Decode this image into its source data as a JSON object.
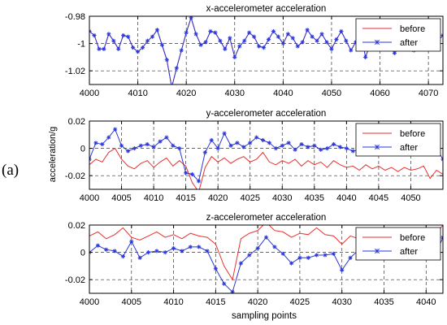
{
  "figure": {
    "panel_label": "(a)",
    "ylabel": "acceleration/g",
    "xlabel": "sampling points",
    "colors": {
      "before": "#e8312f",
      "after": "#2a37d8",
      "grid": "#000000"
    }
  },
  "chart_data": [
    {
      "type": "line",
      "title": "x-accelerometer acceleration",
      "xlabel": "",
      "ylabel": "",
      "xlim": [
        4000,
        4073
      ],
      "ylim": [
        -1.03,
        -0.98
      ],
      "xticks": [
        4000,
        4010,
        4020,
        4030,
        4040,
        4050,
        4060,
        4070
      ],
      "yticks": [
        -0.98,
        -1,
        -1.02
      ],
      "ytick_labels": [
        "-0.98",
        "-1",
        "-1.02"
      ],
      "grid": true,
      "legend": "top-right",
      "series": [
        {
          "name": "before",
          "x": [
            4000,
            4001,
            4002,
            4003,
            4004,
            4005,
            4006,
            4007,
            4008,
            4009,
            4010,
            4011,
            4012,
            4013,
            4014,
            4015,
            4016,
            4017,
            4018,
            4019,
            4020,
            4021,
            4022,
            4023,
            4024,
            4025,
            4026,
            4027,
            4028,
            4029,
            4030,
            4031,
            4032,
            4033,
            4034,
            4035,
            4036,
            4037,
            4038,
            4039,
            4040,
            4041,
            4042,
            4043,
            4044,
            4045,
            4046,
            4047,
            4048,
            4049,
            4050,
            4051,
            4052,
            4053,
            4054,
            4055,
            4056,
            4057,
            4058,
            4059,
            4060,
            4061,
            4062,
            4063,
            4064,
            4065,
            4066,
            4067,
            4068,
            4069,
            4070,
            4071,
            4072,
            4073
          ],
          "values": [
            -0.991,
            -0.994,
            -1.004,
            -1.004,
            -0.993,
            -0.998,
            -1.004,
            -0.994,
            -0.995,
            -1.003,
            -1.006,
            -1.003,
            -0.998,
            -0.995,
            -0.99,
            -1.001,
            -1.012,
            -1.032,
            -1.018,
            -1.005,
            -0.992,
            -0.981,
            -0.993,
            -1.001,
            -0.999,
            -0.991,
            -0.992,
            -0.998,
            -1.004,
            -0.996,
            -1.01,
            -1.002,
            -0.998,
            -0.992,
            -0.995,
            -1.002,
            -1.003,
            -0.997,
            -0.991,
            -0.995,
            -1.0,
            -0.993,
            -0.996,
            -1.002,
            -0.999,
            -0.99,
            -0.995,
            -0.998,
            -0.993,
            -0.999,
            -1.004,
            -0.997,
            -0.991,
            -0.998,
            -1.005,
            -0.999,
            -0.99,
            -1.01,
            -1.0,
            -0.994,
            -0.993,
            -1.002,
            -0.994,
            -1.007,
            -1.003,
            -0.995,
            -0.997,
            -1.005,
            -1.002,
            -0.996,
            -1.004,
            -1.003,
            -0.998,
            -0.994
          ]
        },
        {
          "name": "after",
          "x": [
            4000,
            4001,
            4002,
            4003,
            4004,
            4005,
            4006,
            4007,
            4008,
            4009,
            4010,
            4011,
            4012,
            4013,
            4014,
            4015,
            4016,
            4017,
            4018,
            4019,
            4020,
            4021,
            4022,
            4023,
            4024,
            4025,
            4026,
            4027,
            4028,
            4029,
            4030,
            4031,
            4032,
            4033,
            4034,
            4035,
            4036,
            4037,
            4038,
            4039,
            4040,
            4041,
            4042,
            4043,
            4044,
            4045,
            4046,
            4047,
            4048,
            4049,
            4050,
            4051,
            4052,
            4053,
            4054,
            4055,
            4056,
            4057,
            4058,
            4059,
            4060,
            4061,
            4062,
            4063,
            4064,
            4065,
            4066,
            4067,
            4068,
            4069,
            4070,
            4071,
            4072,
            4073
          ],
          "values": [
            -0.991,
            -0.994,
            -1.004,
            -1.004,
            -0.993,
            -0.998,
            -1.004,
            -0.994,
            -0.995,
            -1.003,
            -1.006,
            -1.003,
            -0.998,
            -0.995,
            -0.99,
            -1.001,
            -1.012,
            -1.032,
            -1.018,
            -1.005,
            -0.992,
            -0.981,
            -0.993,
            -1.001,
            -0.999,
            -0.991,
            -0.992,
            -0.998,
            -1.004,
            -0.996,
            -1.01,
            -1.002,
            -0.998,
            -0.992,
            -0.995,
            -1.002,
            -1.003,
            -0.997,
            -0.991,
            -0.995,
            -1.0,
            -0.993,
            -0.996,
            -1.002,
            -0.999,
            -0.99,
            -0.995,
            -0.998,
            -0.993,
            -0.999,
            -1.004,
            -0.997,
            -0.991,
            -0.998,
            -1.005,
            -0.999,
            -0.99,
            -1.01,
            -1.0,
            -0.994,
            -0.993,
            -1.002,
            -0.994,
            -1.007,
            -1.003,
            -0.995,
            -0.997,
            -1.005,
            -1.002,
            -0.996,
            -1.004,
            -1.003,
            -0.998,
            -0.994
          ]
        }
      ]
    },
    {
      "type": "line",
      "title": "y-accelerometer acceleration",
      "xlabel": "",
      "ylabel": "acceleration/g",
      "xlim": [
        4000,
        4055
      ],
      "ylim": [
        -0.03,
        0.02
      ],
      "xticks": [
        4000,
        4005,
        4010,
        4015,
        4020,
        4025,
        4030,
        4035,
        4040,
        4045,
        4050
      ],
      "yticks": [
        0.02,
        0,
        -0.02
      ],
      "ytick_labels": [
        "0.02",
        "0",
        "-0.02"
      ],
      "grid": true,
      "legend": "top-right",
      "series": [
        {
          "name": "before",
          "x": [
            4000,
            4001,
            4002,
            4003,
            4004,
            4005,
            4006,
            4007,
            4008,
            4009,
            4010,
            4011,
            4012,
            4013,
            4014,
            4015,
            4016,
            4017,
            4018,
            4019,
            4020,
            4021,
            4022,
            4023,
            4024,
            4025,
            4026,
            4027,
            4028,
            4029,
            4030,
            4031,
            4032,
            4033,
            4034,
            4035,
            4036,
            4037,
            4038,
            4039,
            4040,
            4041,
            4042,
            4043,
            4044,
            4045,
            4046,
            4047,
            4048,
            4049,
            4050,
            4051,
            4052,
            4053,
            4054,
            4055
          ],
          "values": [
            -0.012,
            -0.008,
            -0.01,
            -0.003,
            0.0,
            -0.008,
            -0.013,
            -0.015,
            -0.011,
            -0.009,
            -0.014,
            -0.01,
            -0.007,
            -0.013,
            -0.009,
            -0.013,
            -0.025,
            -0.032,
            -0.014,
            -0.006,
            -0.01,
            -0.007,
            -0.011,
            -0.008,
            -0.006,
            -0.01,
            -0.008,
            -0.003,
            -0.01,
            -0.012,
            -0.009,
            -0.011,
            -0.008,
            -0.013,
            -0.009,
            -0.012,
            -0.01,
            -0.014,
            -0.009,
            -0.012,
            -0.014,
            -0.013,
            -0.016,
            -0.012,
            -0.015,
            -0.013,
            -0.016,
            -0.014,
            -0.017,
            -0.014,
            -0.016,
            -0.015,
            -0.013,
            -0.022,
            -0.016,
            -0.019
          ]
        },
        {
          "name": "after",
          "x": [
            4000,
            4001,
            4002,
            4003,
            4004,
            4005,
            4006,
            4007,
            4008,
            4009,
            4010,
            4011,
            4012,
            4013,
            4014,
            4015,
            4016,
            4017,
            4018,
            4019,
            4020,
            4021,
            4022,
            4023,
            4024,
            4025,
            4026,
            4027,
            4028,
            4029,
            4030,
            4031,
            4032,
            4033,
            4034,
            4035,
            4036,
            4037,
            4038,
            4039,
            4040,
            4041,
            4042,
            4043,
            4044,
            4045,
            4046,
            4047,
            4048,
            4049,
            4050,
            4051,
            4052,
            4053,
            4054,
            4055
          ],
          "values": [
            -0.008,
            0.004,
            0.003,
            0.008,
            0.014,
            0.002,
            -0.002,
            0.0,
            0.002,
            0.003,
            0.001,
            0.005,
            0.008,
            0.002,
            0.0,
            -0.018,
            -0.019,
            -0.024,
            -0.003,
            0.006,
            0.0,
            0.011,
            0.002,
            0.004,
            0.001,
            0.004,
            0.008,
            0.006,
            0.004,
            0.0,
            0.002,
            0.004,
            -0.001,
            0.003,
            0.001,
            0.002,
            -0.001,
            0.0,
            0.003,
            0.001,
            0.0,
            -0.002,
            -0.001,
            0.001,
            -0.001,
            0.0,
            -0.001,
            0.0,
            0.001,
            0.0,
            -0.001,
            0.001,
            0.0,
            -0.001,
            0.0,
            -0.008
          ]
        }
      ]
    },
    {
      "type": "line",
      "title": "z-accelerometer acceleration",
      "xlabel": "sampling points",
      "ylabel": "",
      "xlim": [
        4000,
        4042
      ],
      "ylim": [
        -0.03,
        0.02
      ],
      "xticks": [
        4000,
        4005,
        4010,
        4015,
        4020,
        4025,
        4030,
        4035,
        4040
      ],
      "yticks": [
        0.02,
        0,
        -0.02
      ],
      "ytick_labels": [
        "0.02",
        "0",
        "-0.02"
      ],
      "grid": true,
      "legend": "top-right",
      "series": [
        {
          "name": "before",
          "x": [
            4000,
            4001,
            4002,
            4003,
            4004,
            4005,
            4006,
            4007,
            4008,
            4009,
            4010,
            4011,
            4012,
            4013,
            4014,
            4015,
            4016,
            4017,
            4018,
            4019,
            4020,
            4021,
            4022,
            4023,
            4024,
            4025,
            4026,
            4027,
            4028,
            4029,
            4030,
            4031,
            4032,
            4033,
            4034,
            4035,
            4036,
            4037,
            4038,
            4039,
            4040,
            4041,
            4042
          ],
          "values": [
            0.012,
            0.015,
            0.01,
            0.013,
            0.018,
            0.011,
            0.009,
            0.012,
            0.015,
            0.011,
            0.013,
            0.01,
            0.014,
            0.012,
            0.011,
            0.006,
            -0.01,
            -0.02,
            0.01,
            0.014,
            0.016,
            0.022,
            0.016,
            0.015,
            0.011,
            0.014,
            0.013,
            0.018,
            0.013,
            0.012,
            0.006,
            0.012,
            0.01,
            0.013,
            0.012,
            0.009,
            0.011,
            0.012,
            0.01,
            0.013,
            0.01,
            0.012,
            0.02
          ]
        },
        {
          "name": "after",
          "x": [
            4000,
            4001,
            4002,
            4003,
            4004,
            4005,
            4006,
            4007,
            4008,
            4009,
            4010,
            4011,
            4012,
            4013,
            4014,
            4015,
            4016,
            4017,
            4018,
            4019,
            4020,
            4021,
            4022,
            4023,
            4024,
            4025,
            4026,
            4027,
            4028,
            4029,
            4030,
            4031,
            4032,
            4033,
            4034,
            4035,
            4036,
            4037,
            4038,
            4039,
            4040,
            4041,
            4042
          ],
          "values": [
            0.0,
            0.005,
            0.002,
            0.001,
            -0.003,
            0.008,
            -0.004,
            0.0,
            0.001,
            0.0,
            0.003,
            0.001,
            0.004,
            0.004,
            0.001,
            -0.012,
            -0.023,
            -0.029,
            -0.008,
            -0.002,
            0.003,
            0.011,
            0.004,
            -0.001,
            -0.008,
            -0.004,
            -0.004,
            -0.002,
            -0.002,
            -0.001,
            -0.013,
            -0.004,
            0.002,
            0.003,
            0.002,
            0.001,
            0.003,
            0.002,
            0.0,
            0.004,
            -0.002,
            -0.004,
            0.011
          ]
        }
      ]
    }
  ]
}
